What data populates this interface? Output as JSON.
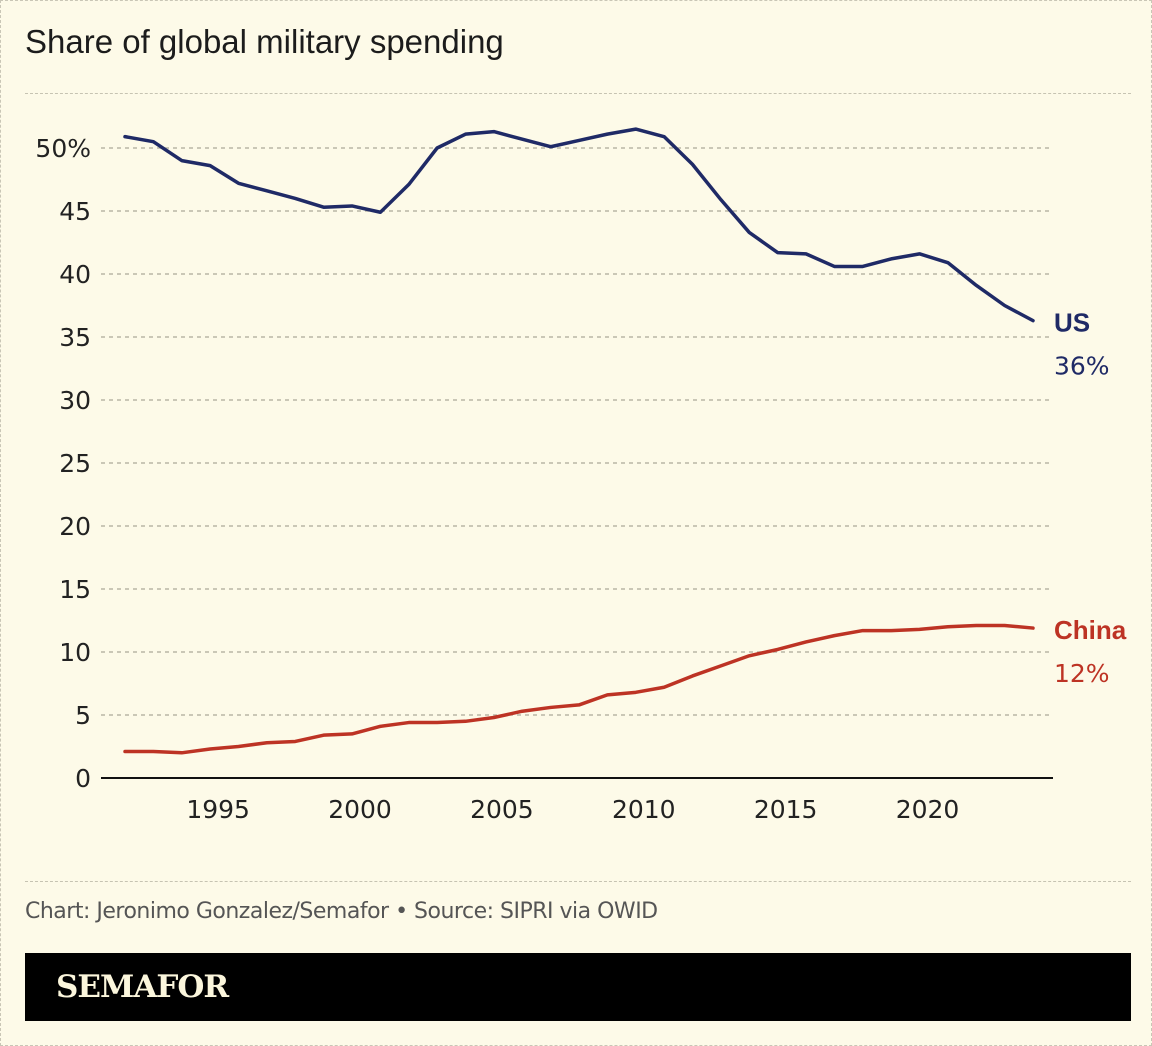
{
  "title": "Share of global military spending",
  "source": "Chart: Jeronimo Gonzalez/Semafor • Source: SIPRI via OWID",
  "brand": "SEMAFOR",
  "chart_data": {
    "type": "line",
    "title": "Share of global military spending",
    "xlim": [
      1992,
      2024
    ],
    "ylim": [
      0,
      50
    ],
    "grid": true,
    "y_ticks": [
      0,
      5,
      10,
      15,
      20,
      25,
      30,
      35,
      40,
      45,
      50
    ],
    "y_tick_labels": [
      "0",
      "5",
      "10",
      "15",
      "20",
      "25",
      "30",
      "35",
      "40",
      "45",
      "50%"
    ],
    "x_ticks": [
      1995,
      2000,
      2005,
      2010,
      2015,
      2020
    ],
    "x_tick_labels": [
      "1995",
      "2000",
      "2005",
      "2010",
      "2015",
      "2020"
    ],
    "x": [
      1992,
      1993,
      1994,
      1995,
      1996,
      1997,
      1998,
      1999,
      2000,
      2001,
      2002,
      2003,
      2004,
      2005,
      2006,
      2007,
      2008,
      2009,
      2010,
      2011,
      2012,
      2013,
      2014,
      2015,
      2016,
      2017,
      2018,
      2019,
      2020,
      2021,
      2022,
      2023,
      2024
    ],
    "series": [
      {
        "name": "US",
        "end_label": "36%",
        "color": "#1f2a66",
        "values": [
          50.9,
          50.5,
          49.0,
          48.6,
          47.2,
          46.6,
          46.0,
          45.3,
          45.4,
          44.9,
          47.1,
          50.0,
          51.1,
          51.3,
          50.7,
          50.1,
          50.6,
          51.1,
          51.5,
          50.9,
          48.7,
          45.9,
          43.3,
          41.7,
          41.6,
          40.6,
          40.6,
          41.2,
          41.6,
          40.9,
          39.1,
          37.5,
          36.3
        ]
      },
      {
        "name": "China",
        "end_label": "12%",
        "color": "#bd3324",
        "values": [
          2.1,
          2.1,
          2.0,
          2.3,
          2.5,
          2.8,
          2.9,
          3.4,
          3.5,
          4.1,
          4.4,
          4.4,
          4.5,
          4.8,
          5.3,
          5.6,
          5.8,
          6.6,
          6.8,
          7.2,
          8.1,
          8.9,
          9.7,
          10.2,
          10.8,
          11.3,
          11.7,
          11.7,
          11.8,
          12.0,
          12.1,
          12.1,
          11.9
        ]
      }
    ]
  }
}
